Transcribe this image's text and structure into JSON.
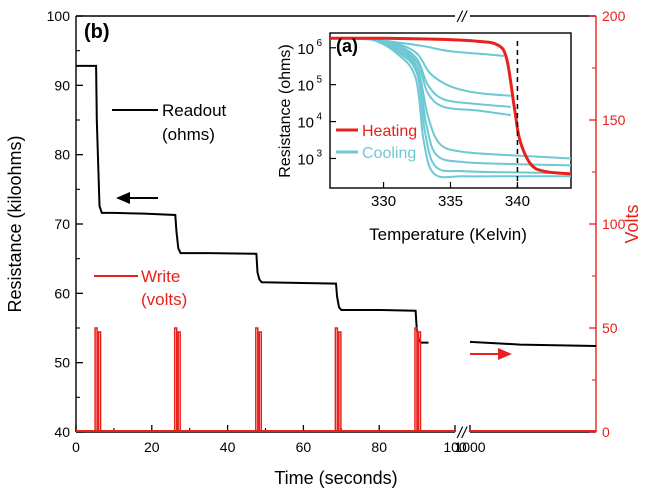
{
  "chart_data": [
    {
      "panel": "(b)",
      "type": "line",
      "xlabel": "Time (seconds)",
      "ylabel_left": "Resistance (kiloohms)",
      "ylabel_right": "Volts",
      "x_ticks": [
        "0",
        "20",
        "40",
        "60",
        "80",
        "100",
        "1000"
      ],
      "x_break_between": [
        100,
        1000
      ],
      "xlim": [
        0,
        1050
      ],
      "ylim_left": [
        40,
        100
      ],
      "y_ticks_left": [
        "40",
        "50",
        "60",
        "70",
        "80",
        "90",
        "100"
      ],
      "ylim_right": [
        0,
        200
      ],
      "y_ticks_right": [
        "0",
        "50",
        "100",
        "150",
        "200"
      ],
      "grid": false,
      "series": [
        {
          "name": "Readout (ohms)",
          "axis": "left",
          "color": "#000000",
          "label_lines": [
            "Readout",
            "(ohms)"
          ],
          "points": [
            [
              0,
              92.8
            ],
            [
              5.3,
              92.8
            ],
            [
              5.5,
              85
            ],
            [
              6.2,
              72.6
            ],
            [
              6.8,
              71.6
            ],
            [
              10,
              71.6
            ],
            [
              18,
              71.5
            ],
            [
              26.2,
              71.3
            ],
            [
              26.5,
              69
            ],
            [
              27,
              66.5
            ],
            [
              27.6,
              65.8
            ],
            [
              35,
              65.8
            ],
            [
              47.6,
              65.7
            ],
            [
              47.9,
              63
            ],
            [
              48.4,
              62
            ],
            [
              49,
              61.6
            ],
            [
              58,
              61.5
            ],
            [
              68.6,
              61.4
            ],
            [
              68.9,
              59.5
            ],
            [
              69.4,
              58
            ],
            [
              70,
              57.6
            ],
            [
              80,
              57.6
            ],
            [
              89.6,
              57.5
            ],
            [
              89.9,
              55
            ],
            [
              90.4,
              53.3
            ],
            [
              91,
              52.9
            ],
            [
              93,
              52.9
            ]
          ],
          "points_after_break": [
            [
              1000,
              53.0
            ],
            [
              1020,
              52.6
            ],
            [
              1050,
              52.4
            ]
          ]
        },
        {
          "name": "Write (volts)",
          "axis": "right",
          "color": "#e8211c",
          "label_lines": [
            "Write",
            "(volts)"
          ],
          "pulses_at": [
            5.3,
            26.3,
            47.7,
            68.7,
            89.7
          ],
          "pulse_height": 50,
          "baseline": 0
        }
      ],
      "arrows": [
        {
          "series": "Readout (ohms)",
          "direction": "left",
          "color": "#000000"
        },
        {
          "series": "Write (volts)",
          "direction": "right",
          "color": "#e8211c"
        }
      ]
    },
    {
      "panel": "(a)",
      "type": "line",
      "xlabel": "Temperature (Kelvin)",
      "ylabel": "Resistance (ohms)",
      "x_ticks": [
        330,
        335,
        340
      ],
      "xlim": [
        326,
        344
      ],
      "ylim_log10": [
        2.2,
        6.4
      ],
      "y_ticks": [
        {
          "base": "10",
          "exp": "3",
          "value": 1000
        },
        {
          "base": "10",
          "exp": "4",
          "value": 10000
        },
        {
          "base": "10",
          "exp": "5",
          "value": 100000
        },
        {
          "base": "10",
          "exp": "6",
          "value": 1000000
        }
      ],
      "yscale": "log",
      "vline_x": 340,
      "legend": [
        {
          "label": "Heating",
          "color": "#e8211c"
        },
        {
          "label": "Cooling",
          "color": "#6ec8d4"
        }
      ],
      "legend_position": "left",
      "series": [
        {
          "group": "Heating",
          "color": "#e8211c",
          "points": [
            [
              326,
              1800000
            ],
            [
              330,
              1800000
            ],
            [
              334,
              1700000
            ],
            [
              337,
              1500000
            ],
            [
              338.5,
              1200000
            ],
            [
              339.2,
              500000
            ],
            [
              339.8,
              20000
            ],
            [
              340.2,
              3000
            ],
            [
              341,
              700
            ],
            [
              342,
              450
            ],
            [
              344,
              380
            ]
          ]
        },
        {
          "group": "Cooling",
          "color": "#6ec8d4",
          "points": [
            [
              326,
              1800000
            ],
            [
              329,
              1700000
            ],
            [
              331,
              1400000
            ],
            [
              333,
              1100000
            ],
            [
              335,
              800000
            ],
            [
              338,
              650000
            ],
            [
              339,
              600000
            ]
          ]
        },
        {
          "group": "Cooling",
          "color": "#6ec8d4",
          "points": [
            [
              326,
              1800000
            ],
            [
              329,
              1700000
            ],
            [
              331,
              1300000
            ],
            [
              332.5,
              700000
            ],
            [
              333.5,
              200000
            ],
            [
              335,
              90000
            ],
            [
              337,
              60000
            ],
            [
              339.5,
              50000
            ]
          ]
        },
        {
          "group": "Cooling",
          "color": "#6ec8d4",
          "points": [
            [
              326,
              1800000
            ],
            [
              329,
              1700000
            ],
            [
              331,
              1200000
            ],
            [
              332.5,
              500000
            ],
            [
              333.3,
              100000
            ],
            [
              334.5,
              40000
            ],
            [
              337,
              30000
            ],
            [
              339.5,
              25000
            ]
          ]
        },
        {
          "group": "Cooling",
          "color": "#6ec8d4",
          "points": [
            [
              326,
              1800000
            ],
            [
              329,
              1700000
            ],
            [
              331,
              1100000
            ],
            [
              332.5,
              400000
            ],
            [
              333.3,
              60000
            ],
            [
              334.5,
              25000
            ],
            [
              337,
              20000
            ],
            [
              339.5,
              15000
            ]
          ]
        },
        {
          "group": "Cooling",
          "color": "#6ec8d4",
          "points": [
            [
              326,
              1800000
            ],
            [
              329,
              1700000
            ],
            [
              331,
              1000000
            ],
            [
              332.5,
              300000
            ],
            [
              333.3,
              15000
            ],
            [
              334.2,
              2500
            ],
            [
              336,
              1500
            ],
            [
              340,
              1200
            ],
            [
              344,
              1000
            ]
          ]
        },
        {
          "group": "Cooling",
          "color": "#6ec8d4",
          "points": [
            [
              326,
              1800000
            ],
            [
              329,
              1700000
            ],
            [
              331,
              900000
            ],
            [
              332.5,
              250000
            ],
            [
              333.2,
              8000
            ],
            [
              334,
              1200
            ],
            [
              336,
              800
            ],
            [
              340,
              700
            ],
            [
              344,
              650
            ]
          ]
        },
        {
          "group": "Cooling",
          "color": "#6ec8d4",
          "points": [
            [
              326,
              1800000
            ],
            [
              329,
              1700000
            ],
            [
              331,
              800000
            ],
            [
              332.5,
              200000
            ],
            [
              333.1,
              5000
            ],
            [
              333.9,
              600
            ],
            [
              336,
              450
            ],
            [
              340,
              420
            ],
            [
              344,
              400
            ]
          ]
        },
        {
          "group": "Cooling",
          "color": "#6ec8d4",
          "points": [
            [
              326,
              1800000
            ],
            [
              329,
              1700000
            ],
            [
              331,
              700000
            ],
            [
              332.4,
              150000
            ],
            [
              333,
              3000
            ],
            [
              333.8,
              380
            ],
            [
              336,
              330
            ],
            [
              340,
              330
            ],
            [
              344,
              330
            ]
          ]
        }
      ]
    }
  ],
  "break_mark": "//"
}
